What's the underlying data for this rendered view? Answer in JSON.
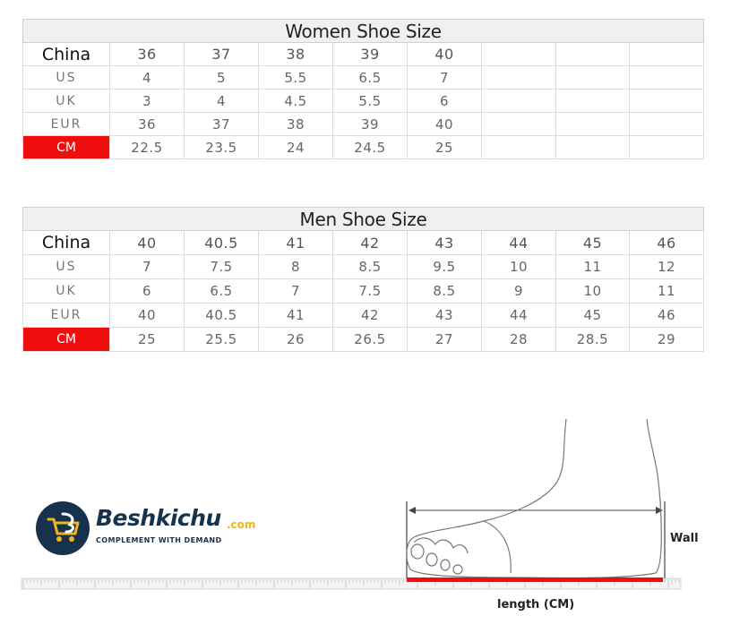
{
  "women_table": {
    "title": "Women Shoe Size",
    "rows": [
      {
        "label": "China",
        "values": [
          "36",
          "37",
          "38",
          "39",
          "40",
          "",
          "",
          ""
        ]
      },
      {
        "label": "US",
        "values": [
          "4",
          "5",
          "5.5",
          "6.5",
          "7",
          "",
          "",
          ""
        ]
      },
      {
        "label": "UK",
        "values": [
          "3",
          "4",
          "4.5",
          "5.5",
          "6",
          "",
          "",
          ""
        ]
      },
      {
        "label": "EUR",
        "values": [
          "36",
          "37",
          "38",
          "39",
          "40",
          "",
          "",
          ""
        ]
      },
      {
        "label": "CM",
        "values": [
          "22.5",
          "23.5",
          "24",
          "24.5",
          "25",
          "",
          "",
          ""
        ]
      }
    ]
  },
  "men_table": {
    "title": "Men Shoe Size",
    "rows": [
      {
        "label": "China",
        "values": [
          "40",
          "40.5",
          "41",
          "42",
          "43",
          "44",
          "45",
          "46"
        ]
      },
      {
        "label": "US",
        "values": [
          "7",
          "7.5",
          "8",
          "8.5",
          "9.5",
          "10",
          "11",
          "12"
        ]
      },
      {
        "label": "UK",
        "values": [
          "6",
          "6.5",
          "7",
          "7.5",
          "8.5",
          "9",
          "10",
          "11"
        ]
      },
      {
        "label": "EUR",
        "values": [
          "40",
          "40.5",
          "41",
          "42",
          "43",
          "44",
          "45",
          "46"
        ]
      },
      {
        "label": "CM",
        "values": [
          "25",
          "25.5",
          "26",
          "26.5",
          "27",
          "28",
          "28.5",
          "29"
        ]
      }
    ]
  },
  "brand": {
    "name": "Beshkichu",
    "domain": ".com",
    "tagline": "COMPLEMENT WITH DEMAND"
  },
  "illustration": {
    "wall_label": "Wall",
    "length_label": "length (CM)"
  },
  "colors": {
    "cm_highlight": "#f00d0d",
    "brand_navy": "#17324d",
    "brand_yellow": "#f2b418"
  },
  "icons": {
    "logo": "shopping-cart-icon"
  }
}
